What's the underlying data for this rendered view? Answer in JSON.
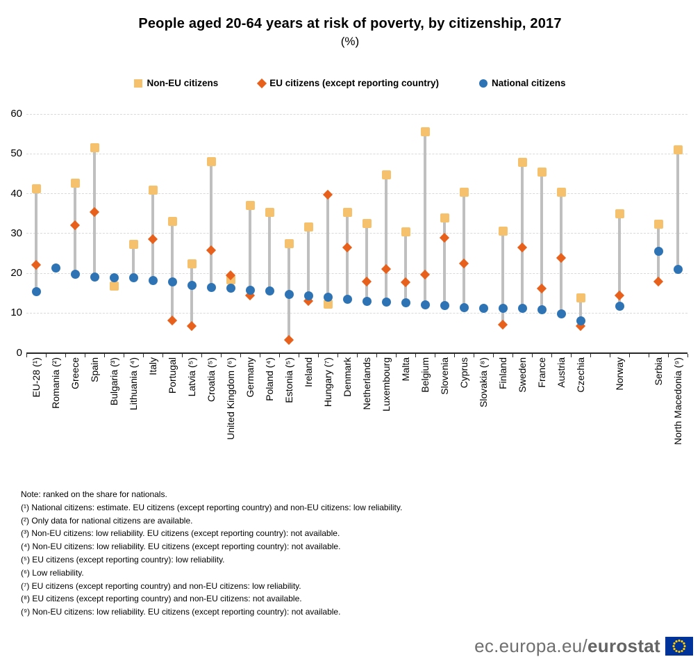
{
  "header": {
    "title": "People aged 20-64 years at risk of poverty, by citizenship, 2017",
    "subtitle": "(%)"
  },
  "chart_data": {
    "type": "scatter",
    "title": "People aged 20-64 years at risk of poverty, by citizenship, 2017",
    "subtitle": "(%)",
    "ylabel": "",
    "xlabel": "",
    "ylim": [
      0,
      60
    ],
    "yticks": [
      0,
      10,
      20,
      30,
      40,
      50,
      60
    ],
    "grid": "horizontal-dashed",
    "legend_position": "top-center",
    "note": "ranked on the share for nationals; empty category slots are visual gaps before Norway and Serbia",
    "categories": [
      "EU-28 (¹)",
      "Romania (²)",
      "Greece",
      "Spain",
      "Bulgaria (³)",
      "Lithuania (⁴)",
      "Italy",
      "Portugal",
      "Latvia (⁵)",
      "Croatia (⁵)",
      "United Kingdom (⁶)",
      "Germany",
      "Poland (⁴)",
      "Estonia (⁵)",
      "Ireland",
      "Hungary (⁷)",
      "Denmark",
      "Netherlands",
      "Luxembourg",
      "Malta",
      "Belgium",
      "Slovenia",
      "Cyprus",
      "Slovakia (⁸)",
      "Finland",
      "Sweden",
      "France",
      "Austria",
      "Czechia",
      "",
      "Norway",
      "",
      "Serbia",
      "North Macedonia (⁹)"
    ],
    "series": [
      {
        "name": "Non-EU citizens",
        "marker": "square",
        "color": "#F5C16D",
        "values": [
          41.3,
          null,
          42.7,
          51.5,
          16.7,
          27.3,
          40.8,
          33.1,
          22.3,
          48.0,
          18.4,
          37.0,
          35.3,
          27.4,
          31.6,
          12.2,
          35.3,
          32.5,
          44.7,
          30.4,
          55.6,
          33.9,
          40.4,
          null,
          30.6,
          47.8,
          45.5,
          40.3,
          13.8,
          null,
          34.9,
          null,
          32.4,
          51.1
        ]
      },
      {
        "name": "EU citizens (except reporting country)",
        "marker": "diamond",
        "color": "#E8611C",
        "values": [
          22.1,
          null,
          32.1,
          35.3,
          null,
          null,
          28.6,
          8.2,
          6.8,
          25.8,
          19.5,
          14.5,
          null,
          3.2,
          13.0,
          39.7,
          26.5,
          17.9,
          21.1,
          17.7,
          19.6,
          28.9,
          22.4,
          null,
          7.1,
          26.4,
          16.1,
          23.9,
          6.7,
          null,
          14.5,
          null,
          17.9,
          null
        ]
      },
      {
        "name": "National citizens",
        "marker": "circle",
        "color": "#2E74B5",
        "values": [
          15.4,
          21.4,
          19.8,
          19.0,
          18.9,
          18.8,
          18.2,
          17.8,
          16.9,
          16.4,
          16.3,
          15.8,
          15.6,
          14.6,
          14.4,
          13.9,
          13.4,
          13.0,
          12.7,
          12.6,
          12.1,
          11.8,
          11.3,
          11.2,
          11.1,
          11.1,
          10.9,
          9.7,
          8.0,
          null,
          11.7,
          null,
          25.5,
          21.0
        ]
      }
    ],
    "stem_color": "#BFBFBF",
    "grid_color": "#D9D9D9"
  },
  "footnotes": {
    "lines": [
      "Note: ranked on the share for nationals.",
      "(¹) National citizens: estimate. EU citizens (except reporting country) and non-EU citizens: low reliability.",
      "(²) Only data for national citizens are available.",
      "(³) Non-EU citizens: low reliability. EU citizens (except reporting country): not available.",
      "(⁴) Non-EU citizens: low reliability. EU citizens (except reporting country): not available.",
      "(⁵) EU citizens (except reporting country): low reliability.",
      "(⁶) Low reliability.",
      "(⁷) EU citizens (except reporting country) and non-EU citizens: low reliability.",
      "(⁸) EU citizens (except reporting country) and non-EU citizens: not available.",
      "(⁹) Non-EU citizens: low reliability. EU citizens (except reporting country): not available."
    ]
  },
  "logo": {
    "prefix": "ec.europa.eu/",
    "bold": "eurostat",
    "flag_blue": "#003399",
    "flag_star": "#FFCC00"
  }
}
